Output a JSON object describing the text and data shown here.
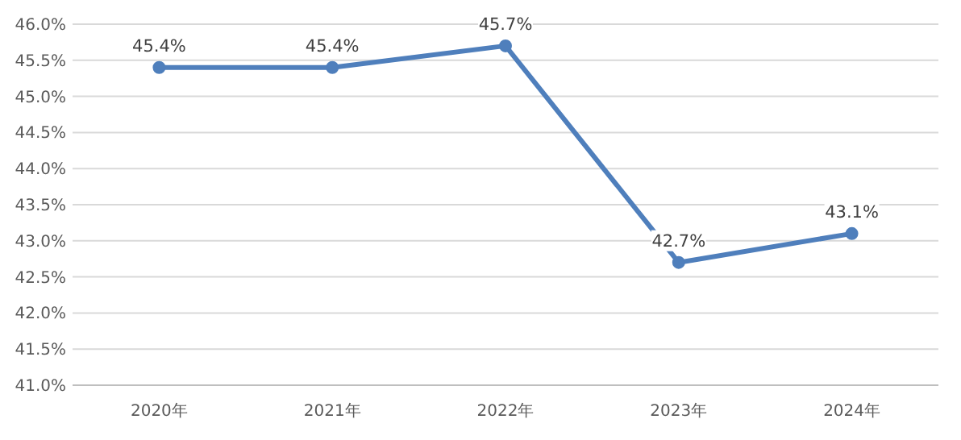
{
  "chart_data": {
    "type": "line",
    "categories": [
      "2020年",
      "2021年",
      "2022年",
      "2023年",
      "2024年"
    ],
    "series": [
      {
        "color": "#4f7fbc",
        "values": [
          45.4,
          45.4,
          45.7,
          42.7,
          43.1
        ],
        "value_labels": [
          "45.4%",
          "45.4%",
          "45.7%",
          "42.7%",
          "43.1%"
        ]
      }
    ],
    "ylim": [
      41,
      46
    ],
    "yticks": [
      {
        "value": 41,
        "label": "41.0%"
      },
      {
        "value": 41.5,
        "label": "41.5%"
      },
      {
        "value": 42,
        "label": "42.0%"
      },
      {
        "value": 42.5,
        "label": "42.5%"
      },
      {
        "value": 43,
        "label": "43.0%"
      },
      {
        "value": 43.5,
        "label": "43.5%"
      },
      {
        "value": 44,
        "label": "44.0%"
      },
      {
        "value": 44.5,
        "label": "44.5%"
      },
      {
        "value": 45,
        "label": "45.0%"
      },
      {
        "value": 45.5,
        "label": "45.5%"
      },
      {
        "value": 46,
        "label": "46.0%"
      }
    ],
    "grid": "y",
    "marker": "circle",
    "line_style": "solid"
  }
}
